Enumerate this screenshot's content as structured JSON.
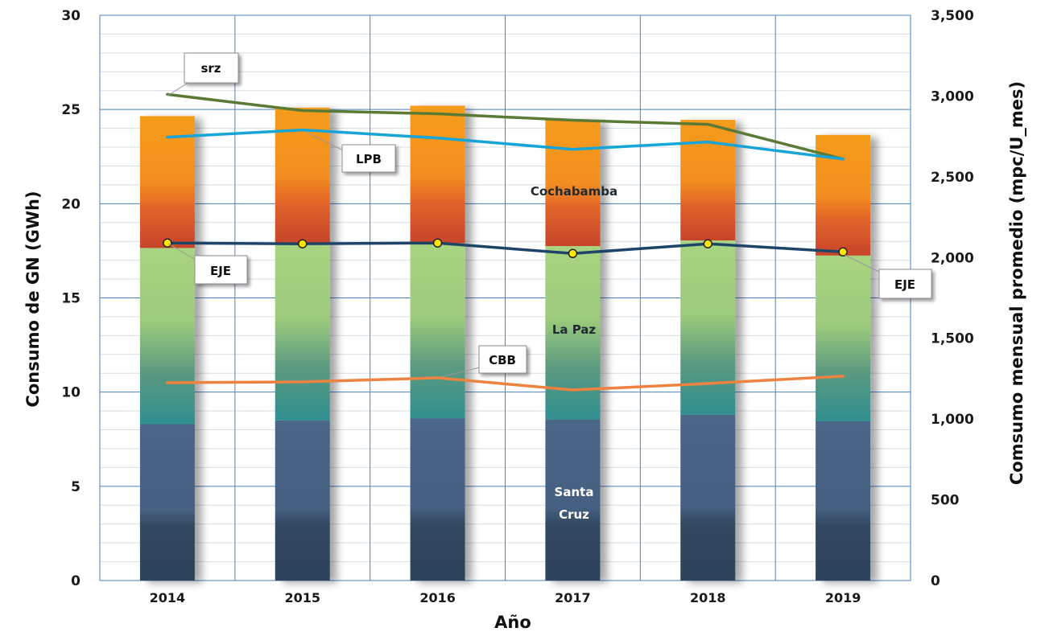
{
  "chart_data": {
    "type": "bar",
    "xlabel": "Año",
    "ylabel": "Consumo de GN (GWh)",
    "y2label": "Comsumo mensual promedio (mpc/U_mes)",
    "categories": [
      "2014",
      "2015",
      "2016",
      "2017",
      "2018",
      "2019"
    ],
    "ylim": [
      0,
      30
    ],
    "yticks": [
      0,
      5,
      10,
      15,
      20,
      25,
      30
    ],
    "y2lim": [
      0,
      3500
    ],
    "y2ticks": [
      "0",
      "500",
      "1,000",
      "1,500",
      "2,000",
      "2,500",
      "3,000",
      "3,500"
    ],
    "grid": true,
    "stacked_series": [
      {
        "name": "Santa Cruz",
        "values": [
          8.3,
          8.5,
          8.6,
          8.55,
          8.8,
          8.45
        ],
        "color": "#476485"
      },
      {
        "name": "La Paz",
        "values": [
          9.35,
          9.4,
          9.3,
          9.2,
          9.25,
          8.8
        ],
        "color": "#a8d37f"
      },
      {
        "name": "Cochabamba",
        "values": [
          7.0,
          7.2,
          7.3,
          6.7,
          6.4,
          6.4
        ],
        "color": "#f59c1e"
      }
    ],
    "line_series": [
      {
        "name": "srz",
        "values": [
          3010,
          2910,
          2890,
          2850,
          2825,
          2610
        ],
        "color": "#5b7a35",
        "markers": false
      },
      {
        "name": "LPB",
        "values": [
          2745,
          2790,
          2740,
          2670,
          2715,
          2610
        ],
        "color": "#17a4d6",
        "markers": false
      },
      {
        "name": "EJE",
        "values": [
          2090,
          2085,
          2090,
          2025,
          2085,
          2035
        ],
        "color": "#1e4568",
        "markers": true
      },
      {
        "name": "CBB",
        "values": [
          1225,
          1230,
          1255,
          1180,
          1220,
          1265
        ],
        "color": "#ee8240",
        "markers": false
      }
    ],
    "segment_labels": {
      "cochabamba": "Cochabamba",
      "la_paz": "La Paz",
      "santa_cruz_line1": "Santa",
      "santa_cruz_line2": "Cruz"
    },
    "callouts": {
      "srz": "srz",
      "lpb": "LPB",
      "eje_left": "EJE",
      "eje_right": "EJE",
      "cbb": "CBB"
    }
  }
}
